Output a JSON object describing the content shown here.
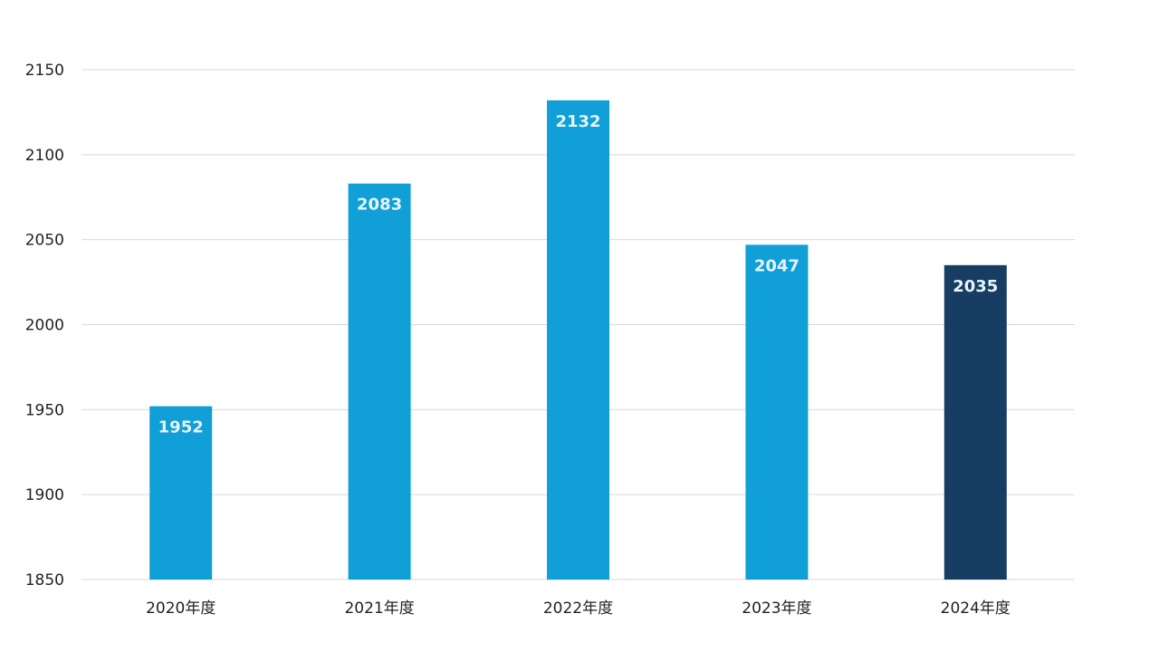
{
  "chart_data": {
    "type": "bar",
    "categories": [
      "2020年度",
      "2021年度",
      "2022年度",
      "2023年度",
      "2024年度"
    ],
    "values": [
      1952,
      2083,
      2132,
      2047,
      2035
    ],
    "data_labels": [
      "1952",
      "2083",
      "2132",
      "2047",
      "2035"
    ],
    "ylim": [
      1850,
      2150
    ],
    "yticks": [
      1850,
      1900,
      1950,
      2000,
      2050,
      2100,
      2150
    ],
    "ytick_labels": [
      "1850",
      "1900",
      "1950",
      "2000",
      "2050",
      "2100",
      "2150"
    ],
    "grid": true,
    "legend": "none",
    "colors": {
      "default_bar": "#119FD7",
      "highlight_bar": "#173D63",
      "highlight_index": 4,
      "grid": "#D9D9D9",
      "label_text": "#E6F4FB",
      "axis_text": "#222222"
    }
  }
}
